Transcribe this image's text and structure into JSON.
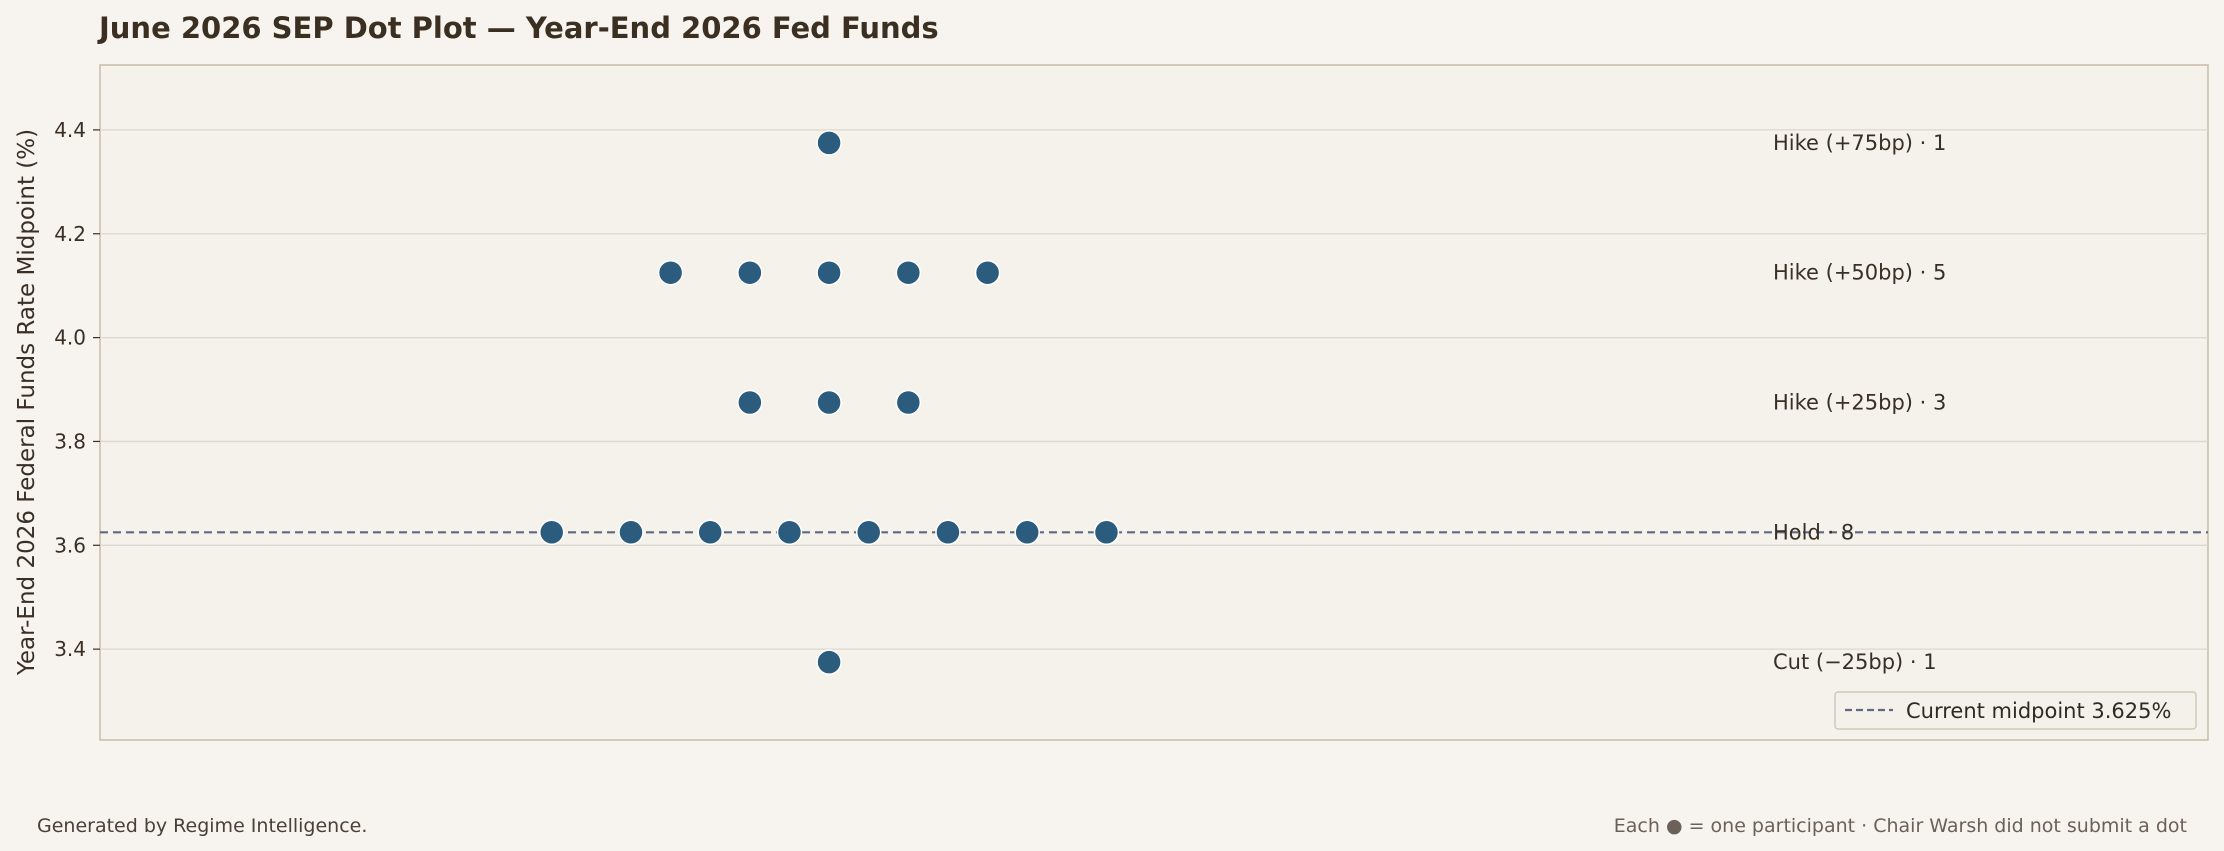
{
  "chart_data": {
    "type": "scatter",
    "title": "June 2026 SEP Dot Plot — Year-End 2026 Fed Funds",
    "xlabel": "",
    "ylabel": "Year-End 2026 Federal Funds Rate Midpoint (%)",
    "ylim": [
      3.225,
      4.525
    ],
    "xlim": [
      0,
      26.6
    ],
    "yticks": [
      "3.4",
      "3.6",
      "3.8",
      "4.0",
      "4.2",
      "4.4"
    ],
    "ytick_values": [
      3.4,
      3.6,
      3.8,
      4.0,
      4.2,
      4.4
    ],
    "grid": "horizontal",
    "dot_color": "#2b5b7d",
    "levels": [
      {
        "label": "Hike (+75bp) · 1",
        "y": 4.375,
        "x": [
          9.2
        ]
      },
      {
        "label": "Hike (+50bp) · 5",
        "y": 4.125,
        "x": [
          7.2,
          8.2,
          9.2,
          10.2,
          11.2
        ]
      },
      {
        "label": "Hike (+25bp) · 3",
        "y": 3.875,
        "x": [
          8.2,
          9.2,
          10.2
        ]
      },
      {
        "label": "Hold · 8",
        "y": 3.625,
        "x": [
          5.7,
          6.7,
          7.7,
          8.7,
          9.7,
          10.7,
          11.7,
          12.7
        ]
      },
      {
        "label": "Cut (−25bp) · 1",
        "y": 3.375,
        "x": [
          9.2
        ]
      }
    ],
    "reference_line": {
      "y": 3.625,
      "label": "Current midpoint 3.625%",
      "style": "dashed",
      "color": "#5f6a82"
    },
    "legend": {
      "placement": "bottom-right",
      "entries": [
        "Current midpoint 3.625%"
      ]
    }
  },
  "footer": {
    "left": "Generated by Regime Intelligence.",
    "right": "Each ● = one participant · Chair Warsh did not submit a dot"
  }
}
